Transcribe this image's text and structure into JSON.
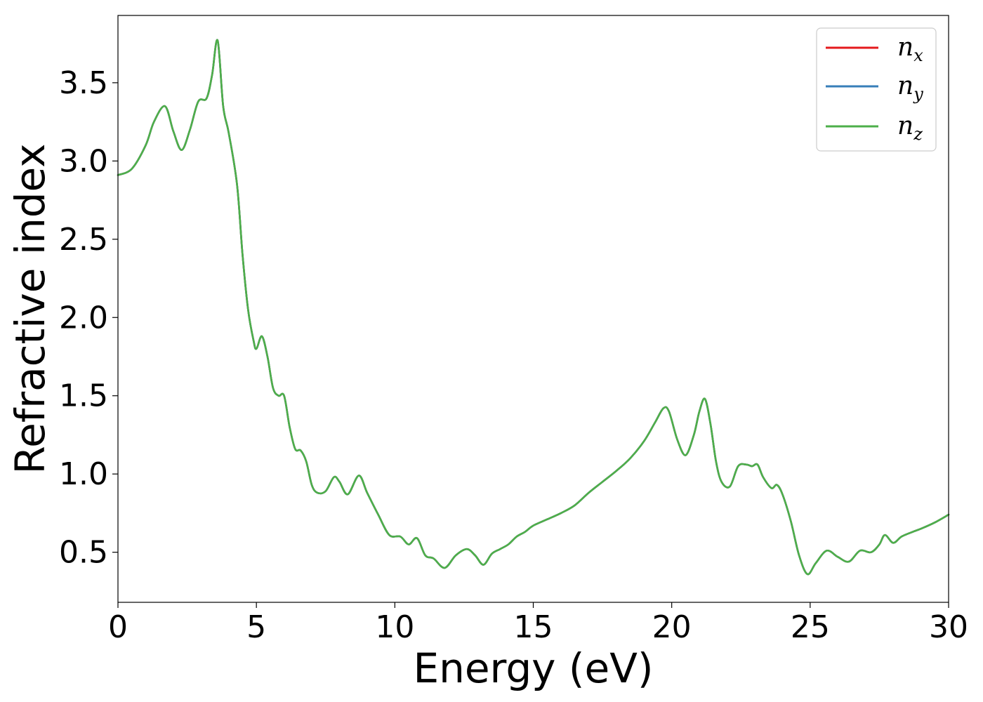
{
  "chart_data": {
    "type": "line",
    "title": "",
    "xlabel": "Energy (eV)",
    "ylabel": "Refractive index",
    "xlim": [
      0,
      30
    ],
    "ylim": [
      0.18,
      3.93
    ],
    "xticks": [
      0,
      5,
      10,
      15,
      20,
      25,
      30
    ],
    "xtick_labels": [
      "0",
      "5",
      "10",
      "15",
      "20",
      "25",
      "30"
    ],
    "yticks": [
      0.5,
      1.0,
      1.5,
      2.0,
      2.5,
      3.0,
      3.5
    ],
    "ytick_labels": [
      "0.5",
      "1.0",
      "1.5",
      "2.0",
      "2.5",
      "3.0",
      "3.5"
    ],
    "grid": false,
    "legend_position": "top-right",
    "legend": [
      {
        "base": "n",
        "sub": "x"
      },
      {
        "base": "n",
        "sub": "y"
      },
      {
        "base": "n",
        "sub": "z"
      }
    ],
    "series": [
      {
        "name": "n_x",
        "color": "#e41a1c"
      },
      {
        "name": "n_y",
        "color": "#377eb8"
      },
      {
        "name": "n_z",
        "color": "#4daf4a"
      }
    ],
    "x": [
      0,
      0.5,
      1.0,
      1.3,
      1.7,
      2.0,
      2.3,
      2.6,
      2.9,
      3.2,
      3.4,
      3.6,
      3.8,
      4.0,
      4.3,
      4.5,
      4.7,
      4.9,
      5.0,
      5.2,
      5.4,
      5.6,
      5.8,
      6.0,
      6.2,
      6.4,
      6.6,
      6.8,
      7.0,
      7.2,
      7.5,
      7.8,
      8.0,
      8.3,
      8.7,
      9.0,
      9.4,
      9.8,
      10.2,
      10.5,
      10.8,
      11.1,
      11.4,
      11.8,
      12.2,
      12.6,
      12.9,
      13.2,
      13.5,
      13.8,
      14.1,
      14.4,
      14.7,
      15.0,
      15.5,
      16.0,
      16.5,
      17.0,
      17.5,
      18.0,
      18.5,
      19.0,
      19.4,
      19.7,
      19.9,
      20.2,
      20.5,
      20.8,
      21.0,
      21.2,
      21.4,
      21.6,
      21.8,
      22.1,
      22.4,
      22.7,
      22.9,
      23.1,
      23.3,
      23.6,
      23.8,
      24.0,
      24.3,
      24.6,
      24.9,
      25.2,
      25.6,
      26.0,
      26.4,
      26.8,
      27.2,
      27.5,
      27.7,
      28.0,
      28.3,
      28.7,
      29.0,
      29.5,
      30.0
    ],
    "y": [
      2.91,
      2.95,
      3.1,
      3.25,
      3.35,
      3.19,
      3.07,
      3.2,
      3.38,
      3.4,
      3.55,
      3.77,
      3.35,
      3.18,
      2.85,
      2.4,
      2.05,
      1.85,
      1.8,
      1.88,
      1.75,
      1.55,
      1.5,
      1.5,
      1.3,
      1.16,
      1.15,
      1.08,
      0.93,
      0.88,
      0.89,
      0.98,
      0.95,
      0.87,
      0.99,
      0.88,
      0.74,
      0.61,
      0.6,
      0.55,
      0.59,
      0.48,
      0.46,
      0.4,
      0.48,
      0.52,
      0.48,
      0.42,
      0.49,
      0.52,
      0.55,
      0.6,
      0.63,
      0.67,
      0.71,
      0.75,
      0.8,
      0.88,
      0.95,
      1.02,
      1.1,
      1.21,
      1.33,
      1.42,
      1.4,
      1.22,
      1.12,
      1.25,
      1.4,
      1.48,
      1.32,
      1.08,
      0.95,
      0.92,
      1.05,
      1.06,
      1.05,
      1.06,
      0.98,
      0.91,
      0.93,
      0.87,
      0.7,
      0.48,
      0.36,
      0.43,
      0.51,
      0.47,
      0.44,
      0.51,
      0.5,
      0.55,
      0.61,
      0.56,
      0.6,
      0.63,
      0.65,
      0.69,
      0.74
    ]
  }
}
